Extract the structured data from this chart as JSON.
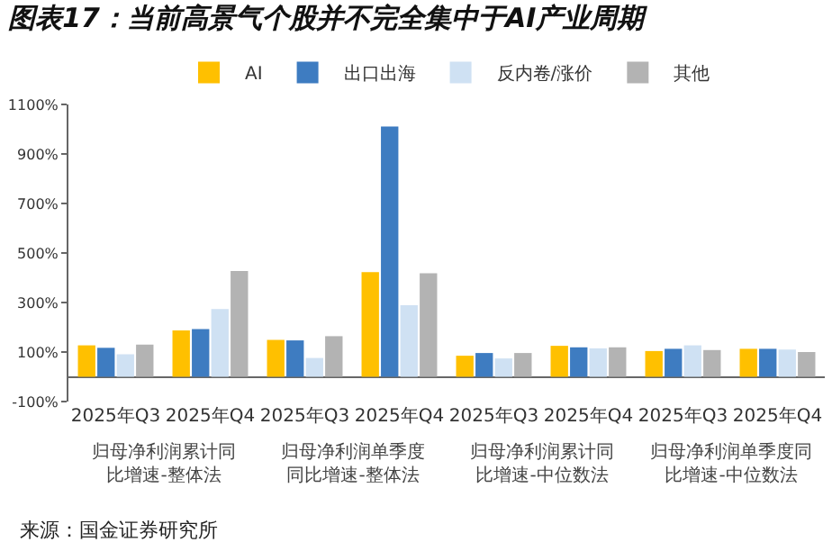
{
  "chart_data": {
    "type": "bar",
    "title": "图表17：当前高景气个股并不完全集中于AI产业周期",
    "categories": [
      "2025年Q3",
      "2025年Q4",
      "2025年Q3",
      "2025年Q4",
      "2025年Q3",
      "2025年Q4",
      "2025年Q3",
      "2025年Q4"
    ],
    "series": [
      {
        "name": "AI",
        "color": "#ffc000",
        "values": [
          127,
          187,
          149,
          423,
          85,
          125,
          104,
          113
        ]
      },
      {
        "name": "出口出海",
        "color": "#3e7cc1",
        "values": [
          117,
          193,
          147,
          1011,
          96,
          119,
          113,
          113
        ]
      },
      {
        "name": "反内卷/涨价",
        "color": "#cfe1f3",
        "values": [
          91,
          274,
          76,
          289,
          74,
          115,
          127,
          110
        ]
      },
      {
        "name": "其他",
        "color": "#b3b3b3",
        "values": [
          130,
          427,
          164,
          418,
          96,
          119,
          108,
          100
        ]
      }
    ],
    "ylim": [
      -100,
      1100
    ],
    "yticks": [
      {
        "value": -100,
        "label": "-100%"
      },
      {
        "value": 100,
        "label": "100%"
      },
      {
        "value": 300,
        "label": "300%"
      },
      {
        "value": 500,
        "label": "500%"
      },
      {
        "value": 700,
        "label": "700%"
      },
      {
        "value": 900,
        "label": "900%"
      },
      {
        "value": 1100,
        "label": "1100%"
      }
    ],
    "annotations": [
      "归母净利润累计同比增速-整体法",
      "归母净利润单季度同比增速-整体法",
      "归母净利润累计同比增速-中位数法",
      "归母净利润单季度同比增速-中位数法",
      "来源：国金证券研究所"
    ],
    "legend": "top"
  }
}
